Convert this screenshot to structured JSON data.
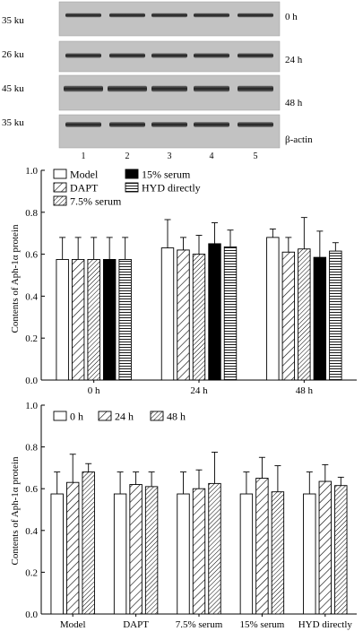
{
  "blot": {
    "rows": [
      {
        "size_label": "35 ku",
        "time_label": "0 h"
      },
      {
        "size_label": "26 ku",
        "time_label": "24 h"
      },
      {
        "size_label": "45 ku",
        "time_label": "48 h"
      },
      {
        "size_label": "35 ku",
        "time_label": "β-actin"
      }
    ],
    "lanes": [
      "1",
      "2",
      "3",
      "4",
      "5"
    ]
  },
  "chart_data": [
    {
      "type": "bar",
      "ylabel": "Contents of Aph-1α protein",
      "ylim": [
        0,
        1.0
      ],
      "yticks": [
        "0.0",
        "0.2",
        "0.4",
        "0.6",
        "0.8",
        "1.0"
      ],
      "categories": [
        "0 h",
        "24 h",
        "48 h"
      ],
      "series": [
        {
          "name": "Model",
          "pattern": "white",
          "values": [
            0.575,
            0.63,
            0.68
          ],
          "errors": [
            0.105,
            0.135,
            0.04
          ]
        },
        {
          "name": "DAPT",
          "pattern": "diag-wide",
          "values": [
            0.575,
            0.62,
            0.61
          ],
          "errors": [
            0.105,
            0.06,
            0.07
          ]
        },
        {
          "name": "7.5% serum",
          "pattern": "diag-dense",
          "values": [
            0.575,
            0.6,
            0.625
          ],
          "errors": [
            0.105,
            0.09,
            0.15
          ]
        },
        {
          "name": "15% serum",
          "pattern": "black",
          "values": [
            0.575,
            0.65,
            0.585
          ],
          "errors": [
            0.105,
            0.1,
            0.125
          ]
        },
        {
          "name": "HYD directly",
          "pattern": "horizontal",
          "values": [
            0.575,
            0.635,
            0.615
          ],
          "errors": [
            0.105,
            0.08,
            0.04
          ]
        }
      ],
      "legend_position": "top-left"
    },
    {
      "type": "bar",
      "ylabel": "Contents of Aph-1α protein",
      "ylim": [
        0,
        1.0
      ],
      "yticks": [
        "0.0",
        "0.2",
        "0.4",
        "0.6",
        "0.8",
        "1.0"
      ],
      "categories": [
        "Model",
        "DAPT",
        "7.5% serum",
        "15% serum",
        "HYD directly"
      ],
      "series": [
        {
          "name": "0 h",
          "pattern": "white",
          "values": [
            0.575,
            0.575,
            0.575,
            0.575,
            0.575
          ],
          "errors": [
            0.105,
            0.105,
            0.105,
            0.105,
            0.105
          ]
        },
        {
          "name": "24 h",
          "pattern": "diag-wide",
          "values": [
            0.63,
            0.62,
            0.6,
            0.65,
            0.635
          ],
          "errors": [
            0.135,
            0.06,
            0.09,
            0.1,
            0.08
          ]
        },
        {
          "name": "48 h",
          "pattern": "diag-dense",
          "values": [
            0.68,
            0.61,
            0.625,
            0.585,
            0.615
          ],
          "errors": [
            0.04,
            0.07,
            0.15,
            0.125,
            0.04
          ]
        }
      ],
      "legend_position": "top-left"
    }
  ]
}
